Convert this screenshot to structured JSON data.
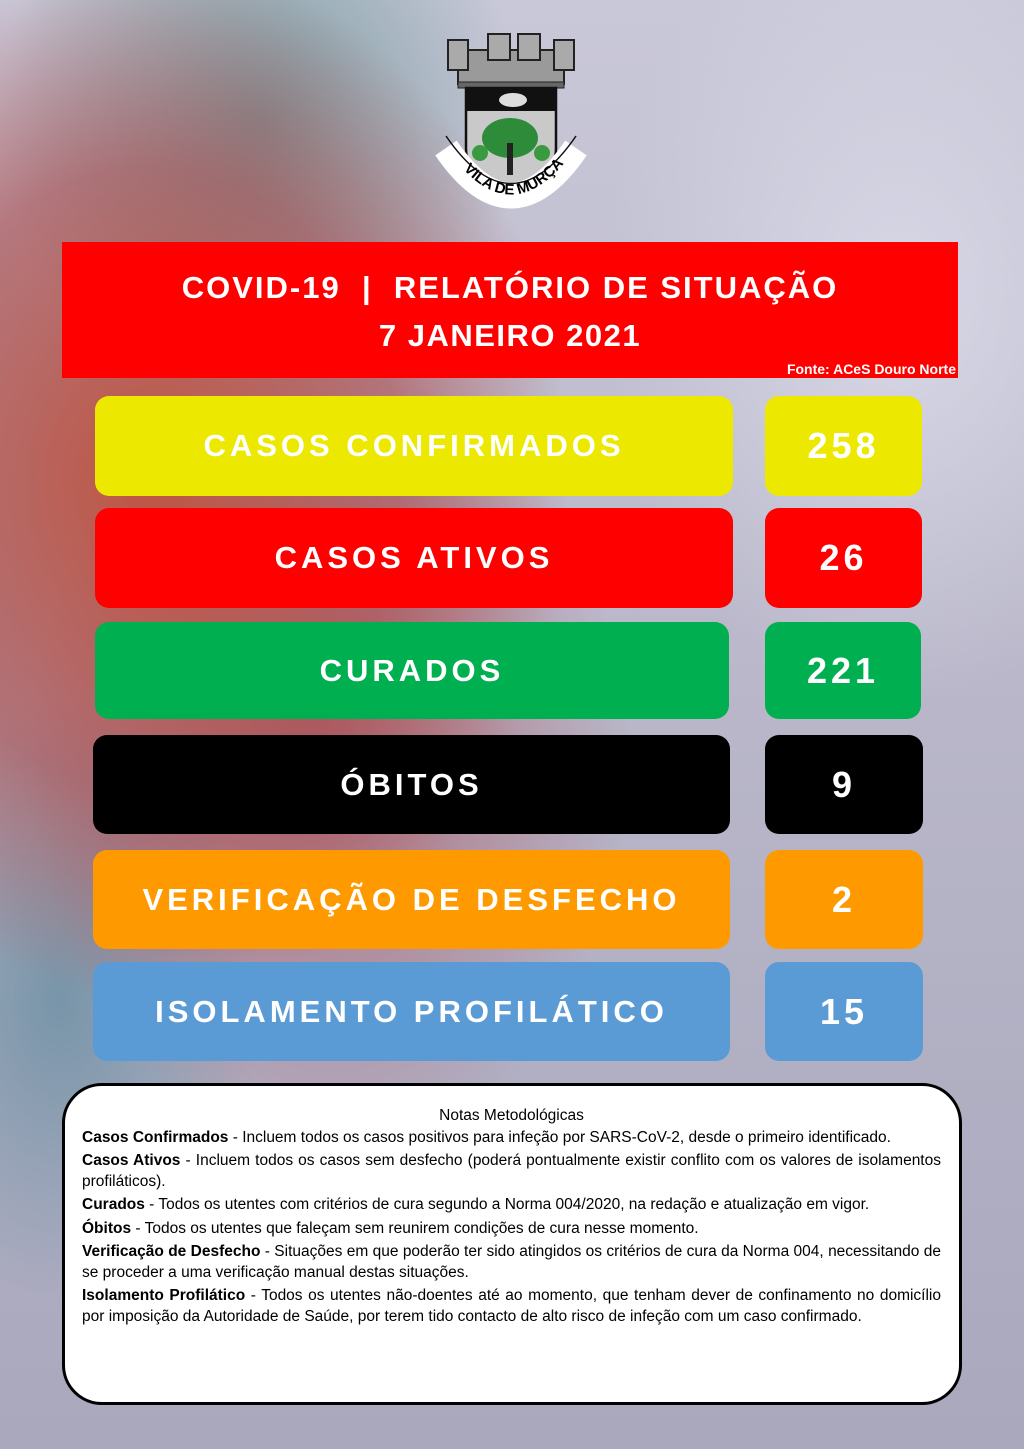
{
  "logo": {
    "text": "VILA DE MURÇA"
  },
  "header": {
    "title": "COVID-19  |  RELATÓRIO DE SITUAÇÃO",
    "date": "7 JANEIRO 2021",
    "source": "Fonte: ACeS Douro Norte"
  },
  "stats": [
    {
      "label": "CASOS CONFIRMADOS",
      "value": "258",
      "color": "#ede800"
    },
    {
      "label": "CASOS ATIVOS",
      "value": "26",
      "color": "#fe0000"
    },
    {
      "label": "CURADOS",
      "value": "221",
      "color": "#00b050"
    },
    {
      "label": "ÓBITOS",
      "value": "9",
      "color": "#000000"
    },
    {
      "label": "VERIFICAÇÃO DE DESFECHO",
      "value": "2",
      "color": "#ff9900"
    },
    {
      "label": "ISOLAMENTO PROFILÁTICO",
      "value": "15",
      "color": "#5b9bd5"
    }
  ],
  "notes": {
    "title": "Notas Metodológicas",
    "items": [
      {
        "term": "Casos Confirmados",
        "text": " - Incluem todos os casos positivos para infeção por SARS-CoV-2, desde o primeiro identificado."
      },
      {
        "term": "Casos Ativos",
        "text": " - Incluem todos os casos sem desfecho (poderá pontualmente existir conflito com os valores de isolamentos profiláticos)."
      },
      {
        "term": "Curados",
        "text": " - Todos os utentes com critérios de cura segundo a Norma 004/2020, na redação e atualização em vigor."
      },
      {
        "term": "Óbitos",
        "text": " - Todos os utentes que faleçam sem reunirem condições de cura nesse momento."
      },
      {
        "term": "Verificação de Desfecho",
        "text": " - Situações em que poderão ter sido atingidos os critérios de cura da Norma 004, necessitando de se proceder a uma verificação manual destas situações."
      },
      {
        "term": "Isolamento Profilático",
        "text": " - Todos os utentes não-doentes até ao momento, que tenham dever de confinamento no domicílio por imposição da Autoridade de Saúde, por terem tido contacto de alto risco de infeção com um caso confirmado."
      }
    ]
  }
}
